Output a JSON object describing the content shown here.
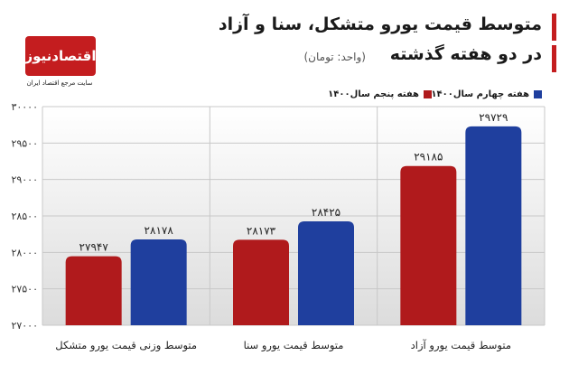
{
  "header": {
    "title_line1": "متوسط قیمت یورو متشکل، سنا و آزاد",
    "title_line2": "در دو هفته گذشته",
    "unit": "(واحد: تومان)"
  },
  "logo": {
    "name": "اقتصادنیوز",
    "tagline": "سایت مرجع اقتصاد ایران"
  },
  "colors": {
    "series_1": "#1f3f9e",
    "series_2": "#b01a1c",
    "accent": "#c41d1f"
  },
  "chart_data": {
    "type": "bar",
    "categories": [
      "متوسط قیمت یورو آزاد",
      "متوسط قیمت یورو سنا",
      "متوسط وزنی قیمت یورو متشکل"
    ],
    "series": [
      {
        "name": "هفته چهارم سال۱۴۰۰",
        "values": [
          29729,
          28425,
          28178
        ],
        "labels": [
          "۲۹۷۲۹",
          "۲۸۴۲۵",
          "۲۸۱۷۸"
        ]
      },
      {
        "name": "هفته پنجم سال۱۴۰۰",
        "values": [
          29185,
          28173,
          27947
        ],
        "labels": [
          "۲۹۱۸۵",
          "۲۸۱۷۳",
          "۲۷۹۴۷"
        ]
      }
    ],
    "ylim": [
      27000,
      30000
    ],
    "yticks": [
      27000,
      27500,
      28000,
      28500,
      29000,
      29500,
      30000
    ],
    "ytick_labels": [
      "۲۷۰۰۰",
      "۲۷۵۰۰",
      "۲۸۰۰۰",
      "۲۸۵۰۰",
      "۲۹۰۰۰",
      "۲۹۵۰۰",
      "۳۰۰۰۰"
    ],
    "grid": true,
    "legend": "top-right"
  }
}
